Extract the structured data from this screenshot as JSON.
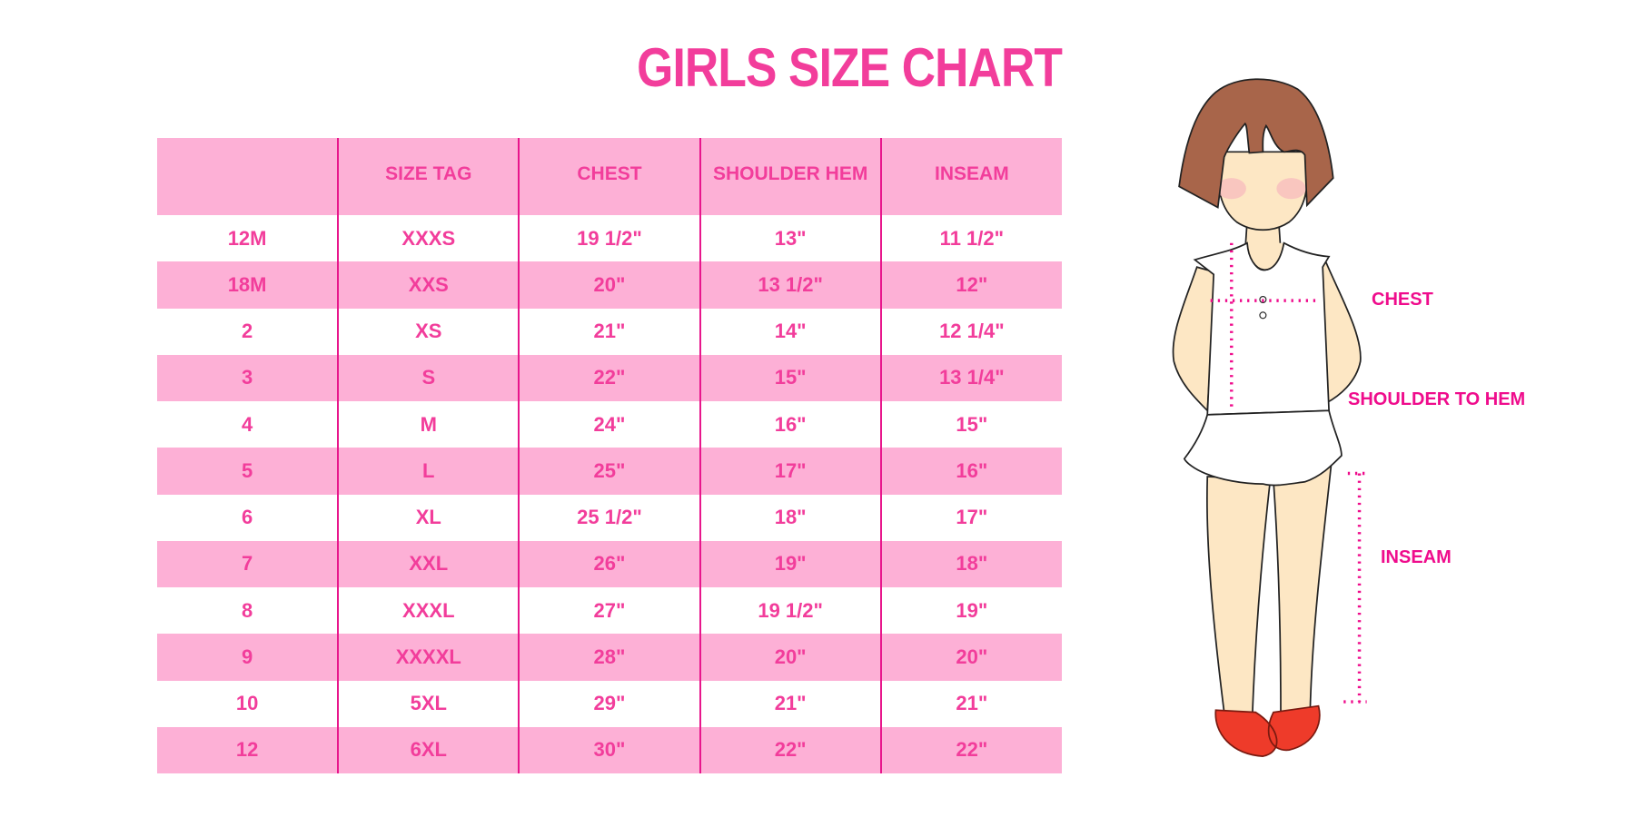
{
  "title": "GIRLS SIZE CHART",
  "table": {
    "headers": [
      "",
      "SIZE TAG",
      "CHEST",
      "SHOULDER HEM",
      "INSEAM"
    ],
    "rows": [
      [
        "12M",
        "XXXS",
        "19 1/2\"",
        "13\"",
        "11 1/2\""
      ],
      [
        "18M",
        "XXS",
        "20\"",
        "13 1/2\"",
        "12\""
      ],
      [
        "2",
        "XS",
        "21\"",
        "14\"",
        "12 1/4\""
      ],
      [
        "3",
        "S",
        "22\"",
        "15\"",
        "13 1/4\""
      ],
      [
        "4",
        "M",
        "24\"",
        "16\"",
        "15\""
      ],
      [
        "5",
        "L",
        "25\"",
        "17\"",
        "16\""
      ],
      [
        "6",
        "XL",
        "25 1/2\"",
        "18\"",
        "17\""
      ],
      [
        "7",
        "XXL",
        "26\"",
        "19\"",
        "18\""
      ],
      [
        "8",
        "XXXL",
        "27\"",
        "19 1/2\"",
        "19\""
      ],
      [
        "9",
        "XXXXL",
        "28\"",
        "20\"",
        "20\""
      ],
      [
        "10",
        "5XL",
        "29\"",
        "21\"",
        "21\""
      ],
      [
        "12",
        "6XL",
        "30\"",
        "22\"",
        "22\""
      ]
    ]
  },
  "measurements": {
    "chest": "CHEST",
    "shoulder_to_hem": "SHOULDER TO HEM",
    "inseam": "INSEAM"
  },
  "colors": {
    "accent": "#f23d9b",
    "row_pink": "#fdb0d6",
    "divider": "#e8168c",
    "hair": "#a8654a",
    "skin": "#fde7c4",
    "shoes": "#ee3b2a"
  }
}
